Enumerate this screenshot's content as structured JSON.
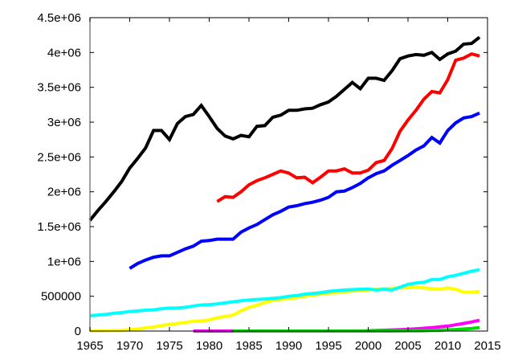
{
  "chart_data": {
    "type": "line",
    "title": "",
    "xlabel": "",
    "ylabel": "",
    "xlim": [
      1965,
      2015
    ],
    "ylim": [
      0,
      4500000
    ],
    "grid": false,
    "legend": "none",
    "x_ticks": [
      1965,
      1970,
      1975,
      1980,
      1985,
      1990,
      1995,
      2000,
      2005,
      2010,
      2015
    ],
    "x_tick_labels": [
      "1965",
      "1970",
      "1975",
      "1980",
      "1985",
      "1990",
      "1995",
      "2000",
      "2005",
      "2010",
      "2015"
    ],
    "y_ticks": [
      0,
      500000,
      1000000,
      1500000,
      2000000,
      2500000,
      3000000,
      3500000,
      4000000,
      4500000
    ],
    "y_tick_labels": [
      "0",
      "500000",
      "1e+06",
      "1.5e+06",
      "2e+06",
      "2.5e+06",
      "3e+06",
      "3.5e+06",
      "4e+06",
      "4.5e+06"
    ],
    "series": [
      {
        "name": "black",
        "color": "#000000",
        "x_start": 1965,
        "values": [
          1590000,
          1730000,
          1860000,
          2000000,
          2150000,
          2340000,
          2480000,
          2630000,
          2880000,
          2880000,
          2750000,
          2980000,
          3080000,
          3110000,
          3240000,
          3080000,
          2910000,
          2800000,
          2760000,
          2810000,
          2790000,
          2940000,
          2950000,
          3070000,
          3100000,
          3170000,
          3170000,
          3190000,
          3200000,
          3250000,
          3290000,
          3370000,
          3470000,
          3570000,
          3480000,
          3630000,
          3630000,
          3600000,
          3740000,
          3910000,
          3950000,
          3970000,
          3960000,
          4000000,
          3900000,
          3980000,
          4020000,
          4120000,
          4130000,
          4220000
        ]
      },
      {
        "name": "red",
        "color": "#ff0000",
        "x_start": 1981,
        "values": [
          1860000,
          1930000,
          1920000,
          2000000,
          2100000,
          2160000,
          2200000,
          2250000,
          2300000,
          2270000,
          2200000,
          2210000,
          2130000,
          2210000,
          2300000,
          2300000,
          2330000,
          2270000,
          2270000,
          2310000,
          2420000,
          2450000,
          2620000,
          2870000,
          3030000,
          3170000,
          3330000,
          3440000,
          3420000,
          3610000,
          3890000,
          3920000,
          3980000,
          3950000
        ]
      },
      {
        "name": "blue",
        "color": "#0000ff",
        "x_start": 1970,
        "values": [
          900000,
          970000,
          1020000,
          1060000,
          1080000,
          1080000,
          1130000,
          1180000,
          1220000,
          1290000,
          1300000,
          1320000,
          1320000,
          1320000,
          1420000,
          1480000,
          1530000,
          1600000,
          1670000,
          1720000,
          1780000,
          1800000,
          1830000,
          1850000,
          1880000,
          1920000,
          2000000,
          2010000,
          2060000,
          2120000,
          2200000,
          2260000,
          2300000,
          2380000,
          2450000,
          2520000,
          2600000,
          2660000,
          2780000,
          2700000,
          2880000,
          2990000,
          3060000,
          3080000,
          3130000
        ]
      },
      {
        "name": "cyan",
        "color": "#00ffff",
        "x_start": 1965,
        "values": [
          220000,
          230000,
          240000,
          255000,
          265000,
          280000,
          290000,
          300000,
          305000,
          320000,
          330000,
          332000,
          340000,
          360000,
          375000,
          380000,
          390000,
          405000,
          420000,
          435000,
          445000,
          455000,
          460000,
          470000,
          480000,
          500000,
          510000,
          530000,
          540000,
          550000,
          570000,
          580000,
          590000,
          595000,
          600000,
          605000,
          590000,
          600000,
          590000,
          630000,
          670000,
          690000,
          700000,
          740000,
          740000,
          780000,
          800000,
          830000,
          860000,
          880000
        ]
      },
      {
        "name": "yellow",
        "color": "#ffff00",
        "x_start": 1965,
        "values": [
          0,
          3000,
          5000,
          8000,
          12000,
          20000,
          30000,
          45000,
          60000,
          80000,
          95000,
          110000,
          125000,
          140000,
          145000,
          160000,
          190000,
          210000,
          230000,
          290000,
          340000,
          370000,
          410000,
          440000,
          455000,
          465000,
          480000,
          500000,
          515000,
          530000,
          545000,
          550000,
          560000,
          575000,
          580000,
          590000,
          600000,
          610000,
          615000,
          620000,
          620000,
          630000,
          620000,
          610000,
          600000,
          620000,
          600000,
          560000,
          560000,
          570000
        ]
      },
      {
        "name": "magenta",
        "color": "#ff00ff",
        "x_start": 1978,
        "values": [
          0,
          0,
          0,
          0,
          0,
          0,
          0,
          0,
          0,
          0,
          0,
          0,
          0,
          0,
          0,
          0,
          0,
          0,
          0,
          0,
          0,
          0,
          5000,
          8000,
          12000,
          16000,
          20000,
          25000,
          32000,
          40000,
          50000,
          60000,
          72000,
          90000,
          110000,
          130000,
          155000
        ]
      },
      {
        "name": "green",
        "color": "#00dd00",
        "x_start": 1983,
        "values": [
          0,
          0,
          0,
          0,
          0,
          0,
          0,
          0,
          0,
          0,
          0,
          0,
          0,
          0,
          0,
          0,
          0,
          0,
          0,
          0,
          0,
          1000,
          2000,
          3000,
          5000,
          8000,
          12000,
          17000,
          22000,
          30000,
          38000,
          50000
        ]
      }
    ]
  }
}
